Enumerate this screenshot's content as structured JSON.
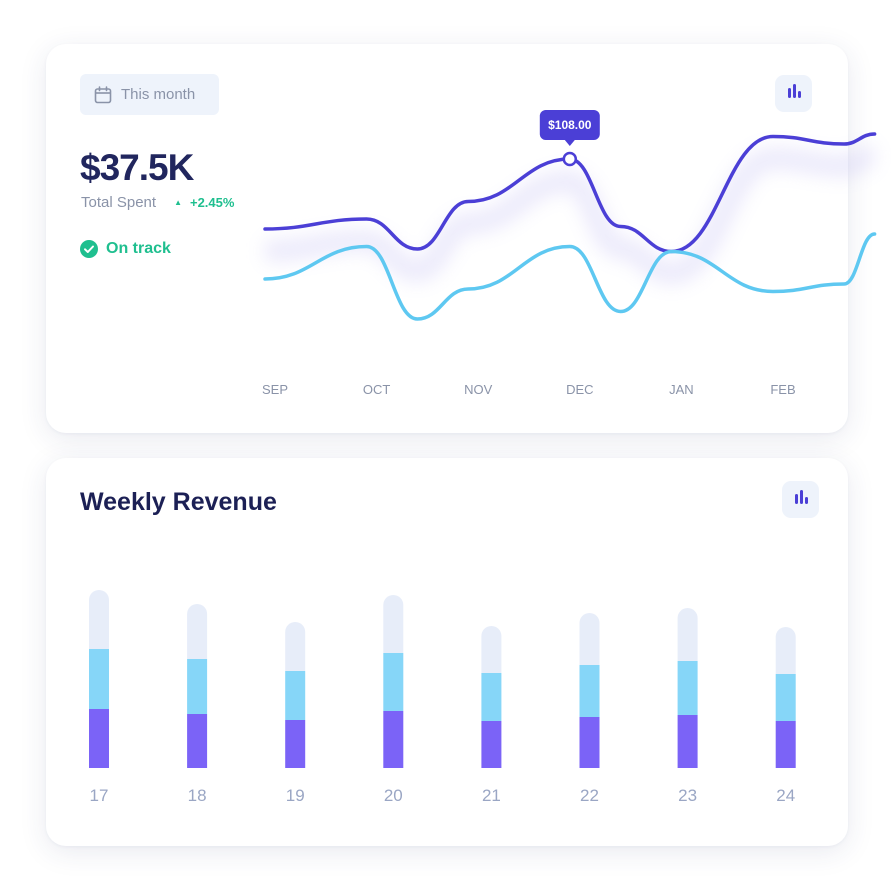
{
  "summary": {
    "date_filter": "This month",
    "amount": "$37.5K",
    "amount_label": "Total Spent",
    "delta": "+2.45%",
    "status": "On track"
  },
  "weekly": {
    "title": "Weekly Revenue"
  },
  "colors": {
    "primary": "#4b3fd6",
    "secondary": "#5ec8f1",
    "bar_base": "#7b63f7",
    "bar_mid": "#86d6f8",
    "bar_top": "#e7edf9",
    "success": "#1fbf8f",
    "title": "#1c2055"
  },
  "icons": {
    "date": "calendar-icon",
    "chart": "bar-chart-icon",
    "status": "check-circle-icon",
    "delta": "triangle-up-icon"
  },
  "chart_data": [
    {
      "type": "line",
      "title": "",
      "xlabel": "",
      "ylabel": "",
      "categories": [
        "SEP",
        "OCT",
        "NOV",
        "DEC",
        "JAN",
        "FEB"
      ],
      "x": [
        0,
        1,
        1.5,
        2,
        3,
        3.5,
        4,
        5,
        5.7,
        6
      ],
      "series": [
        {
          "values": [
            80,
            84,
            72,
            91,
            108,
            81,
            71,
            117,
            114,
            118
          ],
          "highlight_index": 4,
          "highlight_label": "$108.00"
        },
        {
          "values": [
            60,
            73,
            44,
            56,
            73,
            47,
            71,
            55,
            58,
            78
          ]
        }
      ],
      "ylim": [
        0,
        155
      ],
      "grid": false,
      "legend": "none"
    },
    {
      "type": "bar",
      "stacked": true,
      "title": "Weekly Revenue",
      "categories": [
        "17",
        "18",
        "19",
        "20",
        "21",
        "22",
        "23",
        "24"
      ],
      "series": [
        {
          "values": [
            59,
            54,
            48,
            57,
            47,
            51,
            53,
            47
          ]
        },
        {
          "values": [
            60,
            55,
            49,
            58,
            48,
            52,
            54,
            47
          ]
        },
        {
          "values": [
            59,
            55,
            49,
            58,
            47,
            52,
            53,
            47
          ]
        }
      ],
      "ylim": [
        0,
        190
      ],
      "grid": false,
      "legend": "none"
    }
  ]
}
